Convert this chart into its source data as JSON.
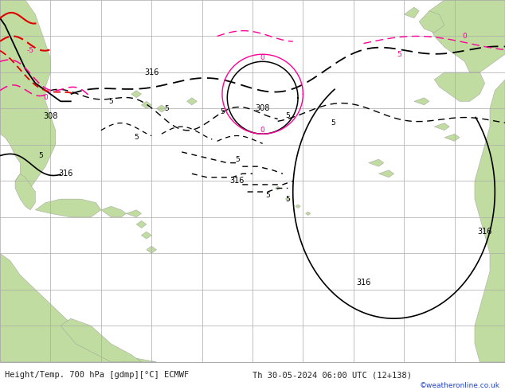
{
  "title_left": "Height/Temp. 700 hPa [gdmp][°C] ECMWF",
  "title_right": "Th 30-05-2024 06:00 UTC (12+138)",
  "copyright": "©weatheronline.co.uk",
  "bg_ocean": "#d0dce8",
  "bg_land": "#c0dca0",
  "grid_color": "#aaaaaa",
  "black": "#000000",
  "magenta": "#ff0099",
  "red": "#dd0000",
  "fig_width": 6.34,
  "fig_height": 4.9,
  "dpi": 100,
  "bottom_bg": "#e8e8e8",
  "text_color": "#222222",
  "link_color": "#2244cc",
  "land_edge": "#999999"
}
